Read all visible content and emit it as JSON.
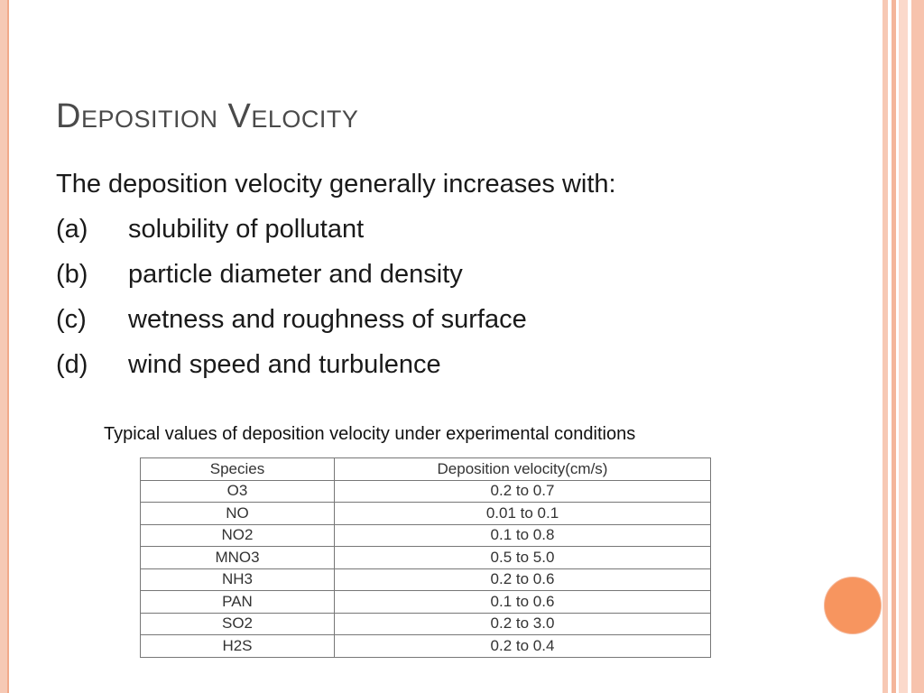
{
  "slide": {
    "title": "Deposition Velocity",
    "intro": "The deposition velocity generally increases with:",
    "items": [
      {
        "label": "(a)",
        "text": "solubility of pollutant"
      },
      {
        "label": "(b)",
        "text": "particle diameter and density"
      },
      {
        "label": "(c)",
        "text": "wetness and roughness of surface"
      },
      {
        "label": "(d)",
        "text": "wind speed and turbulence"
      }
    ],
    "caption": "Typical values of deposition velocity under experimental conditions"
  },
  "table": {
    "headers": [
      "Species",
      "Deposition velocity(cm/s)"
    ],
    "rows": [
      [
        "O3",
        "0.2 to 0.7"
      ],
      [
        "NO",
        "0.01 to 0.1"
      ],
      [
        "NO2",
        "0.1 to 0.8"
      ],
      [
        "MNO3",
        "0.5 to 5.0"
      ],
      [
        "NH3",
        "0.2 to 0.6"
      ],
      [
        "PAN",
        "0.1 to 0.6"
      ],
      [
        "SO2",
        "0.2 to 3.0"
      ],
      [
        "H2S",
        "0.2 to 0.4"
      ]
    ]
  },
  "colors": {
    "accent": "#f7955f",
    "border_stripe": "#f7c3ad",
    "title": "#4a4a4a"
  }
}
